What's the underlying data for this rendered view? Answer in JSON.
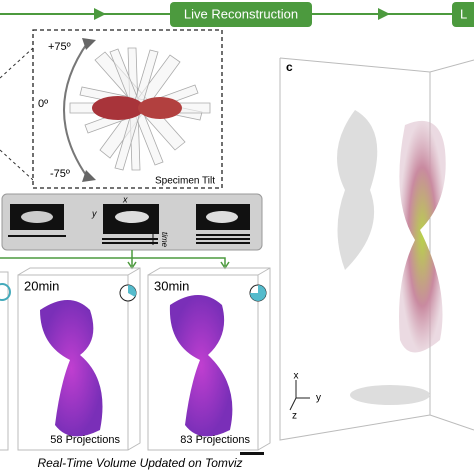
{
  "banner": {
    "step": "Live Reconstruction",
    "next": "L"
  },
  "tilt_panel": {
    "plus": "+75º",
    "zero": "0º",
    "minus": "-75º",
    "caption": "Specimen Tilt"
  },
  "projections_panel": {
    "x": "x",
    "y": "y",
    "time": "time"
  },
  "volumes": [
    {
      "time": "20min",
      "projections": "58 Projections"
    },
    {
      "time": "30min",
      "projections": "83 Projections"
    }
  ],
  "caption": "Real-Time Volume Updated on Tomviz",
  "panel_c": {
    "label": "c",
    "axes": {
      "x": "x",
      "y": "y",
      "z": "z"
    }
  }
}
